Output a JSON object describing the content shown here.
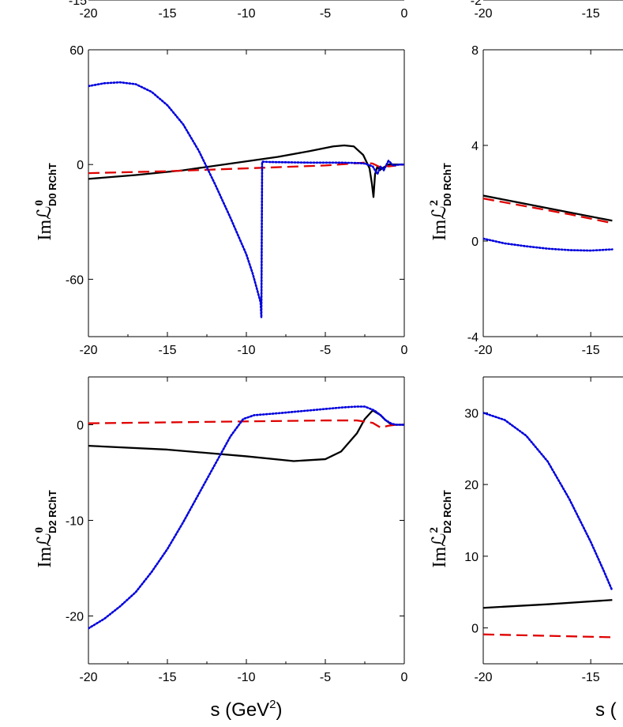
{
  "chart_data": [
    {
      "type": "line",
      "panel": "top-left-fragment",
      "xlim": [
        -20,
        0
      ],
      "xticks": [
        "-20",
        "-15",
        "-10",
        "-5",
        "0"
      ],
      "yticks_visible": [
        "-15"
      ],
      "series": []
    },
    {
      "type": "line",
      "panel": "top-right-fragment",
      "xlim": [
        -20,
        -13.5
      ],
      "xticks": [
        "-20",
        "-15"
      ],
      "yticks_visible": [
        "-2"
      ],
      "series": []
    },
    {
      "type": "line",
      "panel": "middle-left",
      "ylabel_main": "Imℒ",
      "ylabel_sup": "0",
      "ylabel_sub": "D0 RChT",
      "xlim": [
        -20,
        0
      ],
      "ylim": [
        -90,
        60
      ],
      "xticks": [
        -20,
        -15,
        -10,
        -5,
        0
      ],
      "yticks": [
        -60,
        0,
        60
      ],
      "series": [
        {
          "style": "solid",
          "color": "#000000",
          "x": [
            -20,
            -17,
            -14,
            -11,
            -8,
            -6,
            -4.5,
            -3.8,
            -3.2,
            -2.6,
            -2.2,
            -2.05,
            -1.95,
            -1.85,
            -1.7,
            -1.55,
            -1.4,
            -1.2,
            -1.0,
            -0.8,
            -0.5,
            0
          ],
          "y": [
            -7.5,
            -5.5,
            -3,
            0.5,
            4,
            7,
            9.5,
            10,
            9.5,
            5,
            -2,
            -10,
            -17,
            -5,
            -1,
            -3,
            -2,
            -1,
            0,
            0,
            0,
            0
          ]
        },
        {
          "style": "dashed",
          "color": "#e00000",
          "x": [
            -20,
            -15,
            -10,
            -5,
            -2.5,
            -2,
            -1.5,
            -1.2,
            -1.0,
            -0.5,
            0
          ],
          "y": [
            -4.5,
            -3.5,
            -2,
            -0.5,
            1,
            0.5,
            -1.5,
            -0.5,
            -1,
            -0.5,
            0
          ]
        },
        {
          "style": "dotted",
          "color": "#0000dd",
          "x": [
            -20,
            -19,
            -18,
            -17,
            -16,
            -15,
            -14,
            -13,
            -12,
            -11,
            -10,
            -9.6,
            -9.3,
            -9.1,
            -9.05,
            -9.0,
            -8.5,
            -6,
            -4,
            -3,
            -2.5,
            -2,
            -1.7,
            -1.5,
            -1.3,
            -1.0,
            -0.7,
            -0.3,
            0
          ],
          "y": [
            41,
            42.5,
            43,
            42,
            38,
            31,
            21,
            7,
            -10,
            -28,
            -47,
            -57,
            -66,
            -72,
            -80,
            1.5,
            1.3,
            1,
            1,
            0.8,
            0.5,
            -1,
            -5,
            -1,
            -3,
            2,
            -0.5,
            0,
            0
          ]
        }
      ]
    },
    {
      "type": "line",
      "panel": "middle-right-fragment",
      "ylabel_main": "Imℒ",
      "ylabel_sup": "2",
      "ylabel_sub": "D0 RChT",
      "xlim": [
        -20,
        -13.5
      ],
      "ylim": [
        -4,
        8
      ],
      "xticks": [
        -20,
        -15
      ],
      "yticks": [
        -4,
        0,
        4,
        8
      ],
      "series": [
        {
          "style": "solid",
          "color": "#000000",
          "x": [
            -20,
            -18,
            -16,
            -14
          ],
          "y": [
            1.9,
            1.55,
            1.2,
            0.85
          ]
        },
        {
          "style": "dashed",
          "color": "#e00000",
          "x": [
            -20,
            -18,
            -16,
            -14
          ],
          "y": [
            1.78,
            1.45,
            1.12,
            0.75
          ]
        },
        {
          "style": "dotted",
          "color": "#0000dd",
          "x": [
            -20,
            -19,
            -18,
            -17,
            -16,
            -15,
            -14
          ],
          "y": [
            0.1,
            -0.1,
            -0.22,
            -0.32,
            -0.38,
            -0.4,
            -0.35
          ]
        }
      ]
    },
    {
      "type": "line",
      "panel": "bottom-left",
      "ylabel_main": "Imℒ",
      "ylabel_sup": "0",
      "ylabel_sub": "D2 RChT",
      "xlabel": "s (GeV",
      "xlabel_sup": "2",
      "xlabel_tail": ")",
      "xlim": [
        -20,
        0
      ],
      "ylim": [
        -25,
        5
      ],
      "xticks": [
        -20,
        -15,
        -10,
        -5,
        0
      ],
      "yticks": [
        -20,
        -10,
        0
      ],
      "series": [
        {
          "style": "solid",
          "color": "#000000",
          "x": [
            -20,
            -15,
            -10,
            -7,
            -5,
            -4,
            -3,
            -2.5,
            -2,
            -1.5,
            -1.2,
            -0.8,
            -0.4,
            0
          ],
          "y": [
            -2.2,
            -2.6,
            -3.3,
            -3.8,
            -3.6,
            -2.8,
            -0.9,
            0.6,
            1.5,
            1.0,
            0.5,
            0,
            0,
            0
          ]
        },
        {
          "style": "dashed",
          "color": "#e00000",
          "x": [
            -20,
            -15,
            -10,
            -5,
            -3,
            -2,
            -1.5,
            -1.0,
            -0.5,
            0
          ],
          "y": [
            0.15,
            0.25,
            0.35,
            0.45,
            0.45,
            0.2,
            -0.3,
            -0.1,
            0,
            0
          ]
        },
        {
          "style": "dotted",
          "color": "#0000dd",
          "x": [
            -20,
            -19,
            -18,
            -17,
            -16,
            -15,
            -14,
            -13,
            -12,
            -11,
            -10.2,
            -9.5,
            -8,
            -6,
            -4,
            -3,
            -2.5,
            -2.2,
            -1.9,
            -1.5,
            -1.2,
            -0.8,
            -0.5,
            0
          ],
          "y": [
            -21.3,
            -20.3,
            -19,
            -17.5,
            -15.4,
            -13,
            -10.2,
            -7.2,
            -4.2,
            -1.2,
            0.6,
            1.0,
            1.2,
            1.5,
            1.8,
            1.9,
            1.9,
            1.7,
            1.5,
            1.0,
            0.5,
            0.1,
            0,
            0
          ]
        }
      ]
    },
    {
      "type": "line",
      "panel": "bottom-right-fragment",
      "ylabel_main": "Imℒ",
      "ylabel_sup": "2",
      "ylabel_sub": "D2 RChT",
      "xlabel": "s (",
      "xlim": [
        -20,
        -13.5
      ],
      "ylim": [
        -5,
        35
      ],
      "xticks": [
        -20,
        -15
      ],
      "yticks": [
        0,
        10,
        20,
        30
      ],
      "series": [
        {
          "style": "solid",
          "color": "#000000",
          "x": [
            -20,
            -17,
            -14
          ],
          "y": [
            2.8,
            3.3,
            3.9
          ]
        },
        {
          "style": "dashed",
          "color": "#e00000",
          "x": [
            -20,
            -17,
            -14
          ],
          "y": [
            -0.9,
            -1.1,
            -1.3
          ]
        },
        {
          "style": "dotted",
          "color": "#0000dd",
          "x": [
            -20,
            -19,
            -18,
            -17,
            -16,
            -15,
            -14.4,
            -14
          ],
          "y": [
            30,
            29,
            26.8,
            23.2,
            18,
            12,
            8,
            5.2
          ]
        }
      ]
    }
  ]
}
